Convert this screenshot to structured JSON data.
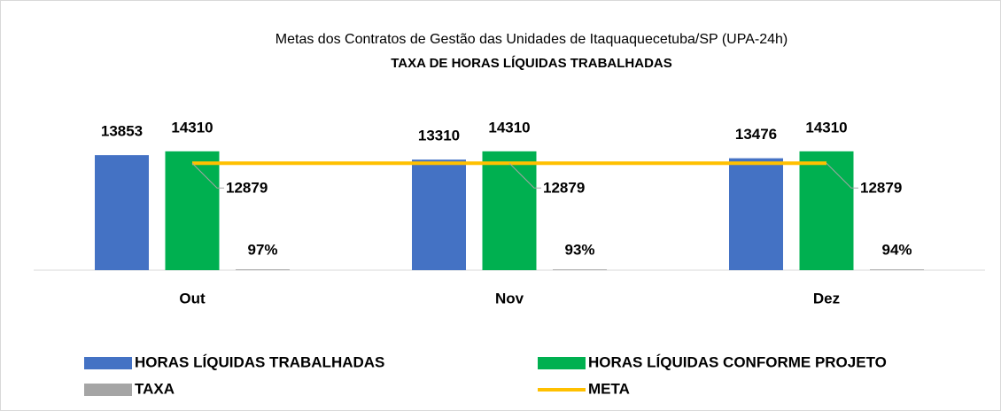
{
  "chart_data": {
    "type": "bar",
    "title": "Metas dos Contratos de Gestão das Unidades de Itaquaquecetuba/SP (UPA-24h)",
    "subtitle": "TAXA DE HORAS LÍQUIDAS TRABALHADAS",
    "categories": [
      "Out",
      "Nov",
      "Dez"
    ],
    "ylim": [
      0,
      16000
    ],
    "series": [
      {
        "name": "HORAS LÍQUIDAS TRABALHADAS",
        "color": "#4472c4",
        "values": [
          13853,
          13310,
          13476
        ]
      },
      {
        "name": "HORAS LÍQUIDAS CONFORME PROJETO",
        "color": "#00b050",
        "values": [
          14310,
          14310,
          14310
        ]
      },
      {
        "name": "TAXA",
        "color": "#a5a5a5",
        "values": [
          97,
          93,
          94
        ],
        "value_labels": [
          "97%",
          "93%",
          "94%"
        ]
      },
      {
        "name": "META",
        "color": "#ffc000",
        "type": "line",
        "values": [
          12879,
          12879,
          12879
        ]
      }
    ]
  }
}
